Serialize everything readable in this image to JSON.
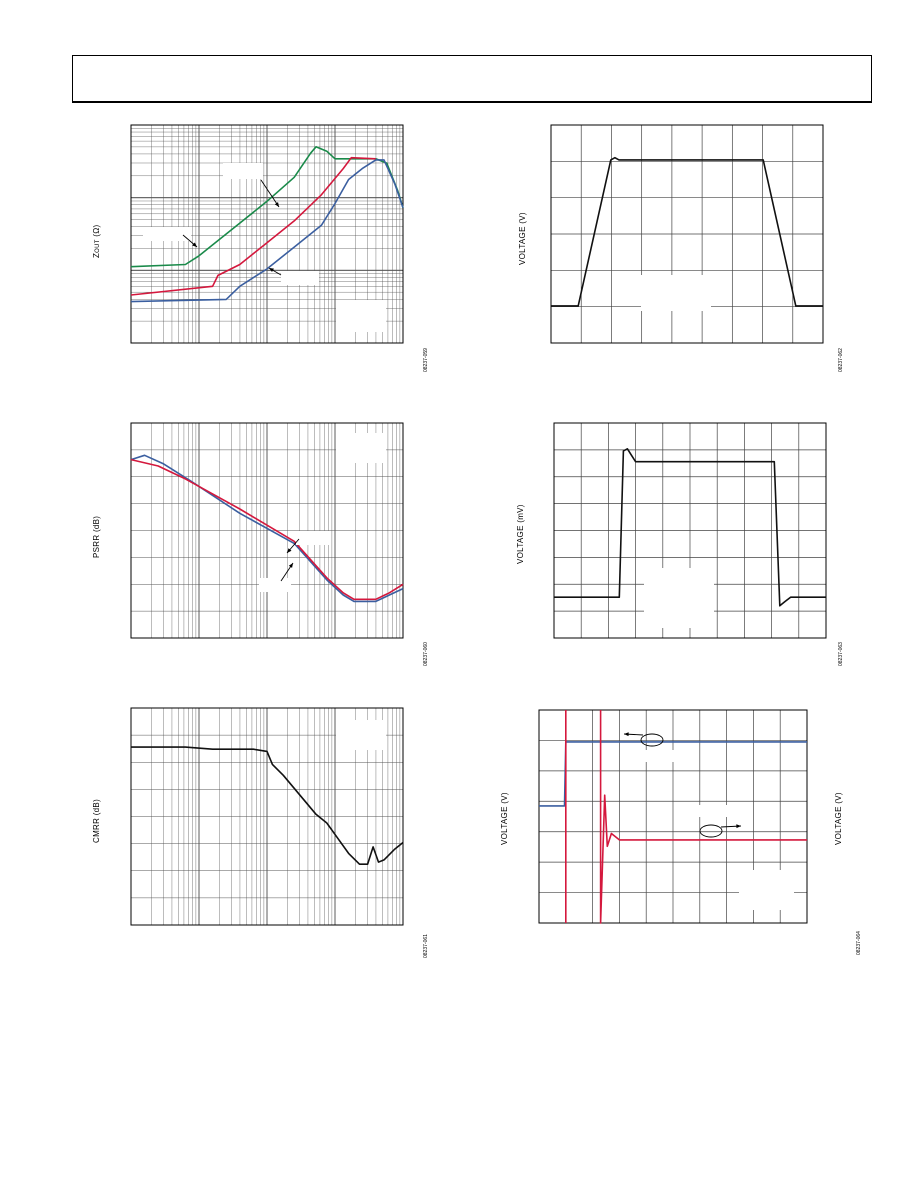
{
  "chart_data": [
    {
      "id": "zout",
      "type": "line",
      "ylabel_main": "Z",
      "ylabel_sub": "OUT",
      "ylabel_unit": "(Ω)",
      "fig_id": "08237-059",
      "x_scale": "log",
      "y_scale": "log",
      "series": [
        {
          "color": "#1a8a4a",
          "points": [
            [
              0,
              0.65
            ],
            [
              0.2,
              0.64
            ],
            [
              0.25,
              0.6
            ],
            [
              0.3,
              0.55
            ],
            [
              0.4,
              0.45
            ],
            [
              0.5,
              0.35
            ],
            [
              0.6,
              0.24
            ],
            [
              0.66,
              0.13
            ],
            [
              0.68,
              0.1
            ],
            [
              0.72,
              0.12
            ],
            [
              0.75,
              0.155
            ],
            [
              0.9,
              0.155
            ],
            [
              0.94,
              0.175
            ],
            [
              0.98,
              0.3
            ],
            [
              1.0,
              0.38
            ]
          ]
        },
        {
          "color": "#d4183d",
          "points": [
            [
              0,
              0.78
            ],
            [
              0.3,
              0.74
            ],
            [
              0.32,
              0.69
            ],
            [
              0.4,
              0.64
            ],
            [
              0.5,
              0.54
            ],
            [
              0.6,
              0.44
            ],
            [
              0.7,
              0.32
            ],
            [
              0.78,
              0.2
            ],
            [
              0.81,
              0.15
            ],
            [
              0.9,
              0.155
            ]
          ]
        },
        {
          "color": "#3b5fa0",
          "points": [
            [
              0,
              0.81
            ],
            [
              0.35,
              0.8
            ],
            [
              0.4,
              0.74
            ],
            [
              0.5,
              0.66
            ],
            [
              0.6,
              0.56
            ],
            [
              0.7,
              0.46
            ],
            [
              0.75,
              0.36
            ],
            [
              0.8,
              0.25
            ],
            [
              0.85,
              0.2
            ],
            [
              0.9,
              0.16
            ],
            [
              0.93,
              0.16
            ],
            [
              0.97,
              0.27
            ],
            [
              1.0,
              0.38
            ]
          ]
        }
      ]
    },
    {
      "id": "pulse-large",
      "type": "line",
      "ylabel": "VOLTAGE (V)",
      "fig_id": "08237-062",
      "grid": [
        9,
        6
      ],
      "series": [
        {
          "color": "#111111",
          "points": [
            [
              0,
              0.83
            ],
            [
              0.1,
              0.83
            ],
            [
              0.22,
              0.16
            ],
            [
              0.235,
              0.15
            ],
            [
              0.25,
              0.16
            ],
            [
              0.78,
              0.16
            ],
            [
              0.9,
              0.83
            ],
            [
              1.0,
              0.83
            ]
          ]
        }
      ]
    },
    {
      "id": "psrr",
      "type": "line",
      "ylabel": "PSRR (dB)",
      "fig_id": "08237-060",
      "x_scale": "log",
      "series": [
        {
          "color": "#3b5fa0",
          "points": [
            [
              0,
              0.17
            ],
            [
              0.05,
              0.15
            ],
            [
              0.12,
              0.19
            ],
            [
              0.22,
              0.27
            ],
            [
              0.4,
              0.42
            ],
            [
              0.6,
              0.56
            ],
            [
              0.72,
              0.73
            ],
            [
              0.78,
              0.8
            ],
            [
              0.82,
              0.83
            ],
            [
              0.9,
              0.83
            ],
            [
              0.95,
              0.8
            ],
            [
              1.0,
              0.77
            ]
          ]
        },
        {
          "color": "#d4183d",
          "points": [
            [
              0,
              0.17
            ],
            [
              0.1,
              0.2
            ],
            [
              0.2,
              0.26
            ],
            [
              0.4,
              0.4
            ],
            [
              0.6,
              0.55
            ],
            [
              0.72,
              0.72
            ],
            [
              0.78,
              0.79
            ],
            [
              0.82,
              0.82
            ],
            [
              0.9,
              0.82
            ],
            [
              0.95,
              0.79
            ],
            [
              1.0,
              0.75
            ]
          ]
        }
      ]
    },
    {
      "id": "pulse-small",
      "type": "line",
      "ylabel": "VOLTAGE (mV)",
      "fig_id": "08237-063",
      "grid": [
        10,
        8
      ],
      "series": [
        {
          "color": "#111111",
          "points": [
            [
              0,
              0.81
            ],
            [
              0.24,
              0.81
            ],
            [
              0.255,
              0.13
            ],
            [
              0.27,
              0.12
            ],
            [
              0.285,
              0.15
            ],
            [
              0.3,
              0.18
            ],
            [
              0.81,
              0.18
            ],
            [
              0.83,
              0.85
            ],
            [
              0.85,
              0.83
            ],
            [
              0.87,
              0.81
            ],
            [
              1.0,
              0.81
            ]
          ]
        }
      ]
    },
    {
      "id": "cmrr",
      "type": "line",
      "ylabel": "CMRR (dB)",
      "fig_id": "08237-061",
      "x_scale": "log",
      "series": [
        {
          "color": "#111111",
          "points": [
            [
              0,
              0.18
            ],
            [
              0.2,
              0.18
            ],
            [
              0.3,
              0.19
            ],
            [
              0.45,
              0.19
            ],
            [
              0.5,
              0.2
            ],
            [
              0.52,
              0.26
            ],
            [
              0.56,
              0.31
            ],
            [
              0.6,
              0.37
            ],
            [
              0.64,
              0.43
            ],
            [
              0.68,
              0.49
            ],
            [
              0.72,
              0.53
            ],
            [
              0.76,
              0.6
            ],
            [
              0.8,
              0.67
            ],
            [
              0.84,
              0.72
            ],
            [
              0.87,
              0.72
            ],
            [
              0.89,
              0.64
            ],
            [
              0.91,
              0.71
            ],
            [
              0.93,
              0.7
            ],
            [
              0.97,
              0.65
            ],
            [
              1.0,
              0.62
            ]
          ]
        }
      ]
    },
    {
      "id": "overload",
      "type": "line",
      "ylabel_left": "VOLTAGE (V)",
      "ylabel_right": "VOLTAGE (V)",
      "fig_id": "08237-064",
      "grid": [
        10,
        7
      ],
      "series": [
        {
          "color": "#3b5fa0",
          "points": [
            [
              0,
              0.45
            ],
            [
              0.095,
              0.45
            ],
            [
              0.1,
              0.15
            ],
            [
              1.0,
              0.15
            ]
          ]
        },
        {
          "color": "#d4183d",
          "points": [
            [
              0.1,
              0.0
            ],
            [
              0.1,
              1.0
            ]
          ]
        },
        {
          "color": "#d4183d",
          "points": [
            [
              0.23,
              0.0
            ],
            [
              0.23,
              1.0
            ],
            [
              0.245,
              0.4
            ],
            [
              0.255,
              0.64
            ],
            [
              0.27,
              0.58
            ],
            [
              0.3,
              0.61
            ],
            [
              0.5,
              0.61
            ],
            [
              1.0,
              0.61
            ]
          ]
        }
      ]
    }
  ]
}
